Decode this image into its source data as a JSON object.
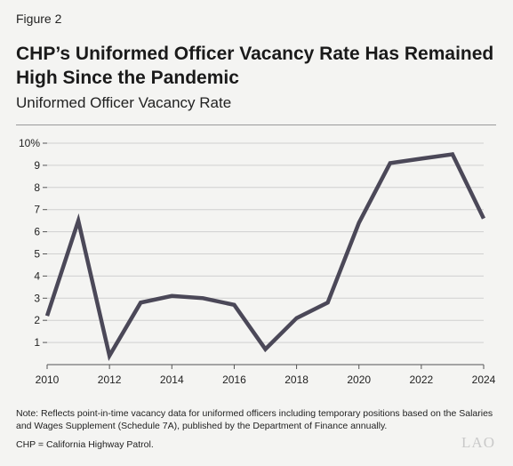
{
  "figure_label": "Figure 2",
  "title": "CHP’s Uniformed Officer Vacancy Rate Has Remained High Since the Pandemic",
  "subtitle": "Uniformed Officer Vacancy Rate",
  "note": "Note: Reflects point-in-time vacancy data for uniformed officers including temporary positions based on the Salaries and Wages Supplement (Schedule 7A), published by the Department of Finance annually.",
  "abbreviation": "CHP = California Highway Patrol.",
  "logo": "LAO",
  "colors": {
    "line": "#4b4858",
    "grid": "#d0d0d0",
    "axis": "#555555",
    "background": "#f4f4f2"
  },
  "chart_data": {
    "type": "line",
    "title": "",
    "xlabel": "",
    "ylabel": "",
    "x": [
      2010,
      2011,
      2012,
      2013,
      2014,
      2015,
      2016,
      2017,
      2018,
      2019,
      2020,
      2021,
      2022,
      2023,
      2024
    ],
    "series": [
      {
        "values": [
          2.2,
          6.5,
          0.4,
          2.8,
          3.1,
          3.0,
          2.7,
          0.7,
          2.1,
          2.8,
          6.4,
          9.1,
          9.3,
          9.5,
          6.6
        ]
      }
    ],
    "xlim": [
      2010,
      2024
    ],
    "ylim": [
      0,
      10
    ],
    "x_ticks": [
      2010,
      2012,
      2014,
      2016,
      2018,
      2020,
      2022,
      2024
    ],
    "x_tick_labels": [
      "2010",
      "2012",
      "2014",
      "2016",
      "2018",
      "2020",
      "2022",
      "2024"
    ],
    "y_ticks": [
      1,
      2,
      3,
      4,
      5,
      6,
      7,
      8,
      9,
      10
    ],
    "y_tick_labels": [
      "1",
      "2",
      "3",
      "4",
      "5",
      "6",
      "7",
      "8",
      "9",
      "10%"
    ],
    "grid": "horizontal",
    "legend": "none"
  }
}
